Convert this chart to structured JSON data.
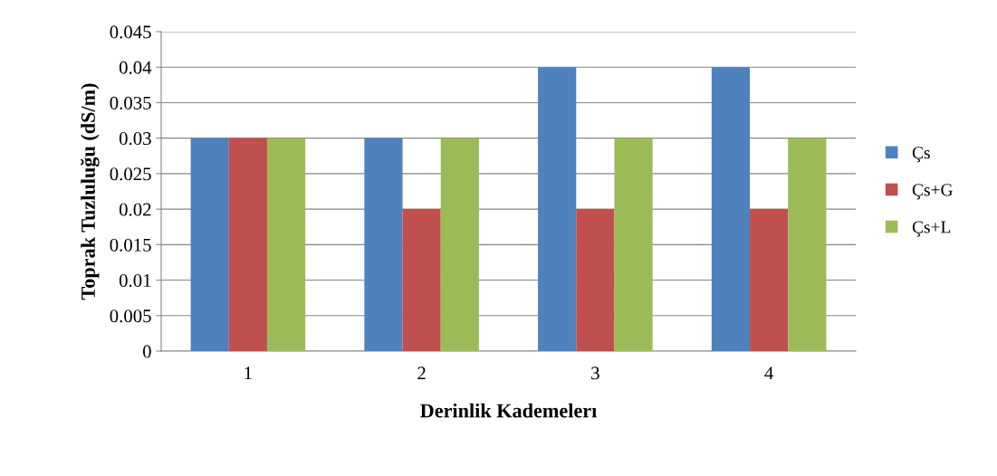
{
  "chart_data": {
    "type": "bar",
    "xlabel": "Derinlik Kademelerı",
    "ylabel": "Toprak Tuzluluğu (dS/m)",
    "categories": [
      "1",
      "2",
      "3",
      "4"
    ],
    "series": [
      {
        "name": "Çs",
        "color": "#4f81bd",
        "values": [
          0.03,
          0.03,
          0.04,
          0.04
        ]
      },
      {
        "name": "Çs+G",
        "color": "#c0504d",
        "values": [
          0.03,
          0.02,
          0.02,
          0.02
        ]
      },
      {
        "name": "Çs+L",
        "color": "#9bbb59",
        "values": [
          0.03,
          0.03,
          0.03,
          0.03
        ]
      }
    ],
    "ylim": [
      0,
      0.045
    ],
    "yticks": [
      0,
      0.005,
      0.01,
      0.015,
      0.02,
      0.025,
      0.03,
      0.035,
      0.04,
      0.045
    ],
    "grid": "y",
    "legend": "right"
  }
}
